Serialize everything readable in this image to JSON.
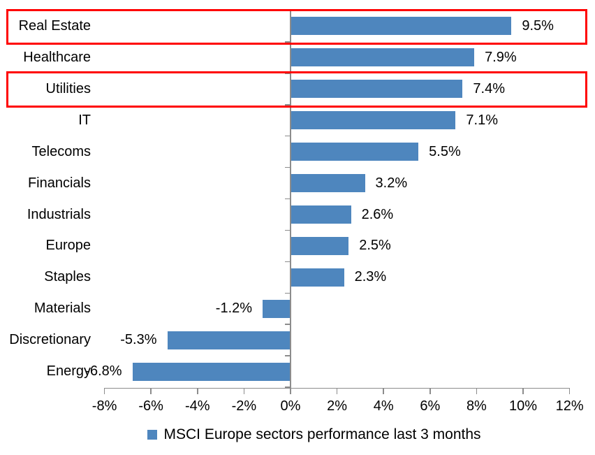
{
  "chart_data": {
    "type": "bar",
    "orientation": "horizontal",
    "title": "",
    "xlabel": "",
    "ylabel": "",
    "categories": [
      "Real Estate",
      "Healthcare",
      "Utilities",
      "IT",
      "Telecoms",
      "Financials",
      "Industrials",
      "Europe",
      "Staples",
      "Materials",
      "Discretionary",
      "Energy"
    ],
    "values": [
      9.5,
      7.9,
      7.4,
      7.1,
      5.5,
      3.2,
      2.6,
      2.5,
      2.3,
      -1.2,
      -5.3,
      -6.8
    ],
    "value_labels": [
      "9.5%",
      "7.9%",
      "7.4%",
      "7.1%",
      "5.5%",
      "3.2%",
      "2.6%",
      "2.5%",
      "2.3%",
      "-1.2%",
      "-5.3%",
      "-6.8%"
    ],
    "highlighted_categories": [
      "Real Estate",
      "Utilities"
    ],
    "x_tick_values": [
      -8,
      -6,
      -4,
      -2,
      0,
      2,
      4,
      6,
      8,
      10,
      12
    ],
    "x_tick_labels": [
      "-8%",
      "-6%",
      "-4%",
      "-2%",
      "0%",
      "2%",
      "4%",
      "6%",
      "8%",
      "10%",
      "12%"
    ],
    "xlim": [
      -8,
      12
    ],
    "grid": false,
    "legend": "MSCI Europe sectors performance last 3 months",
    "legend_position": "bottom",
    "bar_color": "#4E86BE",
    "highlight_color": "#FF0000",
    "axis_color": "#8C8C8C",
    "text_color": "#000000"
  }
}
